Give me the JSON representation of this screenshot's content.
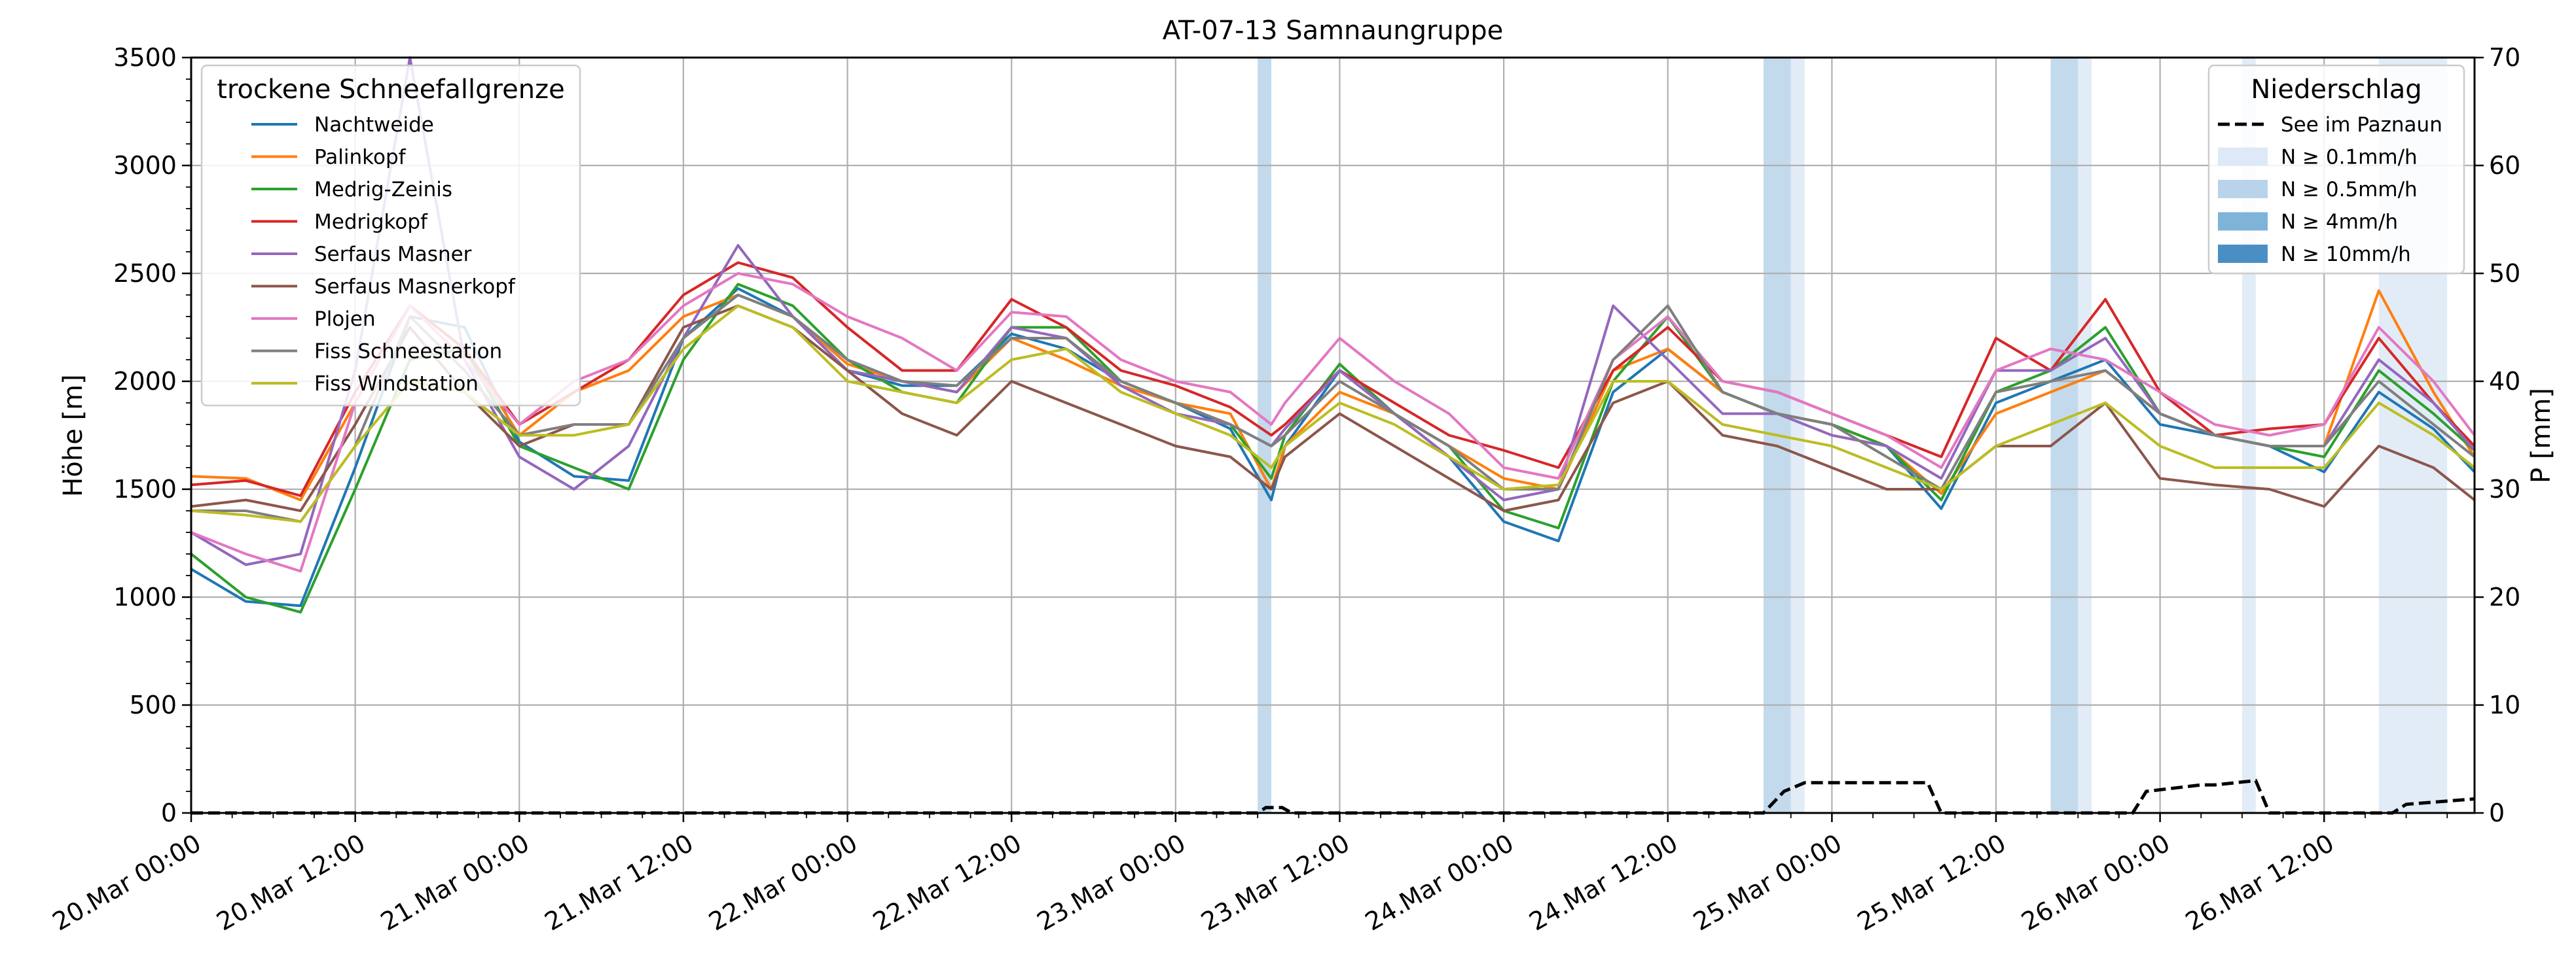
{
  "chart_data": {
    "type": "line",
    "title": "AT-07-13 Samnaungruppe",
    "ylabel": "Höhe [m]",
    "y2label": "P [mm]",
    "ylim": [
      0,
      3500
    ],
    "y2lim": [
      0,
      70
    ],
    "yticks": [
      "0",
      "500",
      "1000",
      "1500",
      "2000",
      "2500",
      "3000",
      "3500"
    ],
    "y2ticks": [
      "0",
      "10",
      "20",
      "30",
      "40",
      "50",
      "60",
      "70"
    ],
    "xticks": [
      "20.Mar 00:00",
      "20.Mar 12:00",
      "21.Mar 00:00",
      "21.Mar 12:00",
      "22.Mar 00:00",
      "22.Mar 12:00",
      "23.Mar 00:00",
      "23.Mar 12:00",
      "24.Mar 00:00",
      "24.Mar 12:00",
      "25.Mar 00:00",
      "25.Mar 12:00",
      "26.Mar 00:00",
      "26.Mar 12:00"
    ],
    "x_hours_from_20_Mar_00": [
      0,
      4,
      8,
      12,
      16,
      20,
      24,
      28,
      32,
      36,
      40,
      44,
      48,
      52,
      56,
      60,
      64,
      68,
      72,
      76,
      79,
      80,
      84,
      88,
      92,
      96,
      100,
      104,
      108,
      112,
      116,
      120,
      124,
      128,
      132,
      136,
      140,
      144,
      148,
      152,
      156,
      160,
      164,
      167
    ],
    "grid": true,
    "legend_placement": "upper-left",
    "legend_title": "trockene Schneefallgrenze",
    "series": [
      {
        "name": "Nachtweide",
        "color": "#1f77b4",
        "values": [
          1130,
          980,
          960,
          1600,
          2300,
          2250,
          1720,
          1560,
          1540,
          2200,
          2430,
          2300,
          2050,
          1980,
          1980,
          2220,
          2150,
          2000,
          1900,
          1780,
          1450,
          1700,
          2050,
          1850,
          1650,
          1350,
          1260,
          1950,
          2150,
          1950,
          1850,
          1800,
          1700,
          1410,
          1900,
          2000,
          2100,
          1800,
          1750,
          1700,
          1580,
          1950,
          1780,
          1580
        ]
      },
      {
        "name": "Palinkopf",
        "color": "#ff7f0e",
        "values": [
          1560,
          1550,
          1450,
          1900,
          2350,
          2150,
          1750,
          1950,
          2050,
          2300,
          2400,
          2300,
          2080,
          2000,
          1950,
          2200,
          2100,
          1980,
          1900,
          1850,
          1500,
          1700,
          1950,
          1850,
          1700,
          1550,
          1500,
          2050,
          2150,
          1950,
          1850,
          1800,
          1700,
          1480,
          1850,
          1950,
          2050,
          1850,
          1750,
          1700,
          1700,
          2420,
          1950,
          1650
        ]
      },
      {
        "name": "Medrig-Zeinis",
        "color": "#2ca02c",
        "values": [
          1200,
          1000,
          930,
          1500,
          2100,
          2150,
          1700,
          1600,
          1500,
          2100,
          2450,
          2350,
          2100,
          1950,
          1900,
          2250,
          2250,
          2000,
          1900,
          1800,
          1550,
          1750,
          2080,
          1850,
          1700,
          1400,
          1320,
          2000,
          2300,
          1950,
          1850,
          1800,
          1700,
          1450,
          1950,
          2050,
          2250,
          1850,
          1750,
          1700,
          1650,
          2050,
          1850,
          1680
        ]
      },
      {
        "name": "Medrigkopf",
        "color": "#d62728",
        "values": [
          1520,
          1540,
          1470,
          1950,
          2350,
          2150,
          1800,
          1950,
          2100,
          2400,
          2550,
          2480,
          2250,
          2050,
          2050,
          2380,
          2250,
          2050,
          1980,
          1880,
          1750,
          1800,
          2050,
          1900,
          1750,
          1680,
          1600,
          2050,
          2250,
          2000,
          1950,
          1850,
          1750,
          1650,
          2200,
          2050,
          2380,
          1950,
          1750,
          1780,
          1800,
          2200,
          1900,
          1700
        ]
      },
      {
        "name": "Serfaus Masner",
        "color": "#9467bd",
        "values": [
          1300,
          1150,
          1200,
          2050,
          3500,
          2100,
          1650,
          1500,
          1700,
          2200,
          2630,
          2300,
          2050,
          2000,
          1950,
          2250,
          2200,
          1980,
          1850,
          1800,
          1700,
          1780,
          2050,
          1850,
          1650,
          1450,
          1500,
          2350,
          2100,
          1850,
          1850,
          1750,
          1700,
          1550,
          2050,
          2050,
          2200,
          1850,
          1750,
          1700,
          1700,
          2100,
          1900,
          1680
        ]
      },
      {
        "name": "Serfaus Masnerkopf",
        "color": "#8c564b",
        "values": [
          1420,
          1450,
          1400,
          1800,
          2250,
          1950,
          1700,
          1800,
          1800,
          2250,
          2350,
          2250,
          2050,
          1850,
          1750,
          2000,
          1900,
          1800,
          1700,
          1650,
          1500,
          1650,
          1850,
          1700,
          1550,
          1400,
          1450,
          1900,
          2000,
          1750,
          1700,
          1600,
          1500,
          1500,
          1700,
          1700,
          1900,
          1550,
          1520,
          1500,
          1420,
          1700,
          1600,
          1450
        ]
      },
      {
        "name": "Plojen",
        "color": "#e377c2",
        "values": [
          1300,
          1200,
          1120,
          1900,
          2350,
          2100,
          1800,
          2000,
          2100,
          2350,
          2500,
          2450,
          2300,
          2200,
          2050,
          2320,
          2300,
          2100,
          2000,
          1950,
          1800,
          1900,
          2200,
          2000,
          1850,
          1600,
          1550,
          2100,
          2300,
          2000,
          1950,
          1850,
          1750,
          1600,
          2050,
          2150,
          2100,
          1950,
          1800,
          1750,
          1800,
          2250,
          2000,
          1750
        ]
      },
      {
        "name": "Fiss Schneestation",
        "color": "#7f7f7f",
        "values": [
          1400,
          1400,
          1350,
          1700,
          2300,
          2050,
          1750,
          1800,
          1800,
          2200,
          2400,
          2300,
          2100,
          2000,
          1980,
          2200,
          2200,
          2000,
          1900,
          1800,
          1700,
          1750,
          2000,
          1850,
          1700,
          1500,
          1500,
          2100,
          2350,
          1950,
          1850,
          1800,
          1650,
          1500,
          1950,
          2000,
          2050,
          1850,
          1750,
          1700,
          1700,
          2000,
          1800,
          1650
        ]
      },
      {
        "name": "Fiss Windstation",
        "color": "#bcbd22",
        "values": [
          1400,
          1380,
          1350,
          1700,
          2000,
          1950,
          1750,
          1750,
          1800,
          2150,
          2350,
          2250,
          2000,
          1950,
          1900,
          2100,
          2150,
          1950,
          1850,
          1750,
          1600,
          1700,
          1900,
          1800,
          1650,
          1500,
          1520,
          2000,
          2000,
          1800,
          1750,
          1700,
          1600,
          1500,
          1700,
          1800,
          1900,
          1700,
          1600,
          1600,
          1600,
          1900,
          1750,
          1600
        ]
      }
    ],
    "precip_legend_title": "Niederschlag",
    "precip_series": {
      "name": "See im Paznaun",
      "color": "#000000",
      "x": [
        0,
        78,
        78.6,
        79.8,
        80.5,
        115,
        116.5,
        118,
        127,
        128,
        142,
        143,
        147,
        148,
        151,
        152,
        161,
        162,
        164,
        167
      ],
      "values": [
        0,
        0,
        0.5,
        0.5,
        0,
        0,
        2,
        2.8,
        2.8,
        0,
        0,
        2,
        2.6,
        2.6,
        3,
        0,
        0,
        0.8,
        1,
        1.3
      ]
    },
    "precip_bands_legend": [
      "N ≥ 0.1mm/h",
      "N ≥ 0.5mm/h",
      "N ≥ 4mm/h",
      "N ≥ 10mm/h"
    ],
    "precip_band_colors": [
      "#dde9f6",
      "#b9d3ea",
      "#7fb3d8",
      "#4a8fc4"
    ],
    "precip_bands": [
      {
        "start": 78,
        "end": 79,
        "level": 1
      },
      {
        "start": 115,
        "end": 117,
        "level": 1
      },
      {
        "start": 117,
        "end": 118,
        "level": 0
      },
      {
        "start": 136,
        "end": 138,
        "level": 1
      },
      {
        "start": 138,
        "end": 139,
        "level": 0
      },
      {
        "start": 150,
        "end": 151,
        "level": 0
      },
      {
        "start": 160,
        "end": 165,
        "level": 0
      }
    ]
  }
}
